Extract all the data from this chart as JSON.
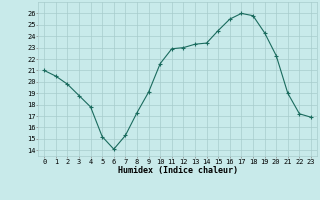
{
  "x": [
    0,
    1,
    2,
    3,
    4,
    5,
    6,
    7,
    8,
    9,
    10,
    11,
    12,
    13,
    14,
    15,
    16,
    17,
    18,
    19,
    20,
    21,
    22,
    23
  ],
  "y": [
    21.0,
    20.5,
    19.8,
    18.8,
    17.8,
    15.2,
    14.1,
    15.3,
    17.3,
    19.1,
    21.6,
    22.9,
    23.0,
    23.3,
    23.4,
    24.5,
    25.5,
    26.0,
    25.8,
    24.3,
    22.3,
    19.0,
    17.2,
    16.9
  ],
  "line_color": "#1a6b5e",
  "marker": "+",
  "marker_size": 3,
  "bg_color": "#c8eaea",
  "grid_color": "#a8cccc",
  "xlabel": "Humidex (Indice chaleur)",
  "ylabel_ticks": [
    14,
    15,
    16,
    17,
    18,
    19,
    20,
    21,
    22,
    23,
    24,
    25,
    26
  ],
  "ylim": [
    13.5,
    27.0
  ],
  "xlim": [
    -0.5,
    23.5
  ],
  "xticks": [
    0,
    1,
    2,
    3,
    4,
    5,
    6,
    7,
    8,
    9,
    10,
    11,
    12,
    13,
    14,
    15,
    16,
    17,
    18,
    19,
    20,
    21,
    22,
    23
  ],
  "tick_fontsize": 5.0,
  "xlabel_fontsize": 6.0
}
